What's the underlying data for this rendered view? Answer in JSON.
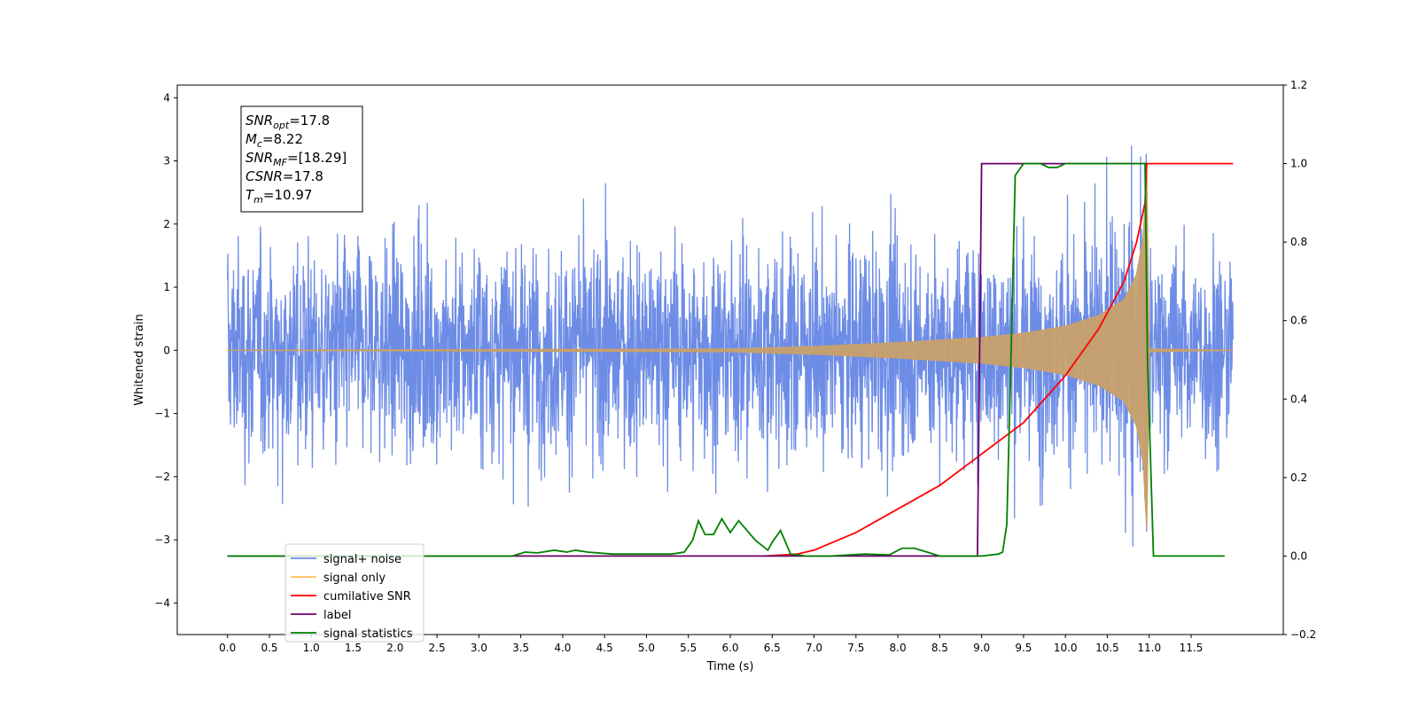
{
  "chart_data": {
    "type": "line",
    "xlabel": "Time (s)",
    "ylabel": "Whitened strain",
    "xlim": [
      -0.6,
      12.6
    ],
    "ylim": [
      -4.5,
      4.2
    ],
    "y2lim": [
      -0.2,
      1.2
    ],
    "xticks": [
      "0.0",
      "0.5",
      "1.0",
      "1.5",
      "2.0",
      "2.5",
      "3.0",
      "3.5",
      "4.0",
      "4.5",
      "5.0",
      "5.5",
      "6.0",
      "6.5",
      "7.0",
      "7.5",
      "8.0",
      "8.5",
      "9.0",
      "9.5",
      "10.0",
      "10.5",
      "11.0",
      "11.5"
    ],
    "yticks": [
      "−4",
      "−3",
      "−2",
      "−1",
      "0",
      "1",
      "2",
      "3",
      "4"
    ],
    "y2ticks": [
      "−0.2",
      "0.0",
      "0.2",
      "0.4",
      "0.6",
      "0.8",
      "1.0",
      "1.2"
    ],
    "annotation": [
      {
        "sym": "SNR",
        "sub": "opt",
        "val": "=17.8"
      },
      {
        "sym": "M",
        "sub": "c",
        "val": "=8.22"
      },
      {
        "sym": "SNR",
        "sub": "MF",
        "val": "=[18.29]"
      },
      {
        "sym": "CSNR",
        "sub": "",
        "val": "=17.8"
      },
      {
        "sym": "T",
        "sub": "m",
        "val": "=10.97"
      }
    ],
    "legend": {
      "placement": "lower-left",
      "entries": [
        {
          "label": "signal+ noise",
          "color": "#6d8ce6"
        },
        {
          "label": "signal only",
          "color": "#ffbf5a"
        },
        {
          "label": "cumilative SNR",
          "color": "#ff0000"
        },
        {
          "label": "label",
          "color": "#6b006b"
        },
        {
          "label": "signal statistics",
          "color": "#008000"
        }
      ]
    },
    "series": [
      {
        "name": "signal+ noise",
        "axis": "left",
        "color": "#6d8ce6",
        "description_range": [
          0.0,
          12.0
        ],
        "amplitude_envelope": {
          "x": [
            0,
            2,
            4,
            6,
            8,
            9,
            10,
            10.5,
            10.9,
            11.0,
            12.0
          ],
          "y": [
            2.8,
            2.9,
            3.0,
            3.2,
            3.0,
            3.1,
            3.2,
            3.2,
            3.3,
            3.0,
            2.9
          ]
        }
      },
      {
        "name": "signal only",
        "axis": "left",
        "color": "#c8a06b",
        "x": [
          0.0,
          6.0,
          7.0,
          8.0,
          9.0,
          9.5,
          10.0,
          10.4,
          10.7,
          10.85,
          10.93,
          10.97,
          11.0,
          12.0
        ],
        "y": [
          0.0,
          0.02,
          0.06,
          0.12,
          0.2,
          0.27,
          0.38,
          0.55,
          0.8,
          1.2,
          1.8,
          2.8,
          0.02,
          0.0
        ]
      },
      {
        "name": "cumilative SNR",
        "axis": "right",
        "color": "#ff0000",
        "x": [
          6.4,
          6.8,
          7.0,
          7.5,
          8.0,
          8.5,
          9.0,
          9.5,
          10.0,
          10.4,
          10.7,
          10.85,
          10.95,
          10.97,
          11.1,
          12.0
        ],
        "y": [
          0.0,
          0.005,
          0.015,
          0.06,
          0.12,
          0.18,
          0.26,
          0.34,
          0.46,
          0.58,
          0.7,
          0.8,
          0.9,
          1.0,
          1.0,
          1.0
        ]
      },
      {
        "name": "label",
        "axis": "right",
        "color": "#6b006b",
        "x": [
          0.0,
          8.95,
          9.0,
          10.97
        ],
        "y": [
          0.0,
          0.0,
          1.0,
          1.0
        ]
      },
      {
        "name": "signal statistics",
        "axis": "right",
        "color": "#008000",
        "x": [
          0.0,
          3.4,
          3.55,
          3.7,
          3.9,
          4.05,
          4.15,
          4.3,
          4.6,
          5.0,
          5.3,
          5.45,
          5.55,
          5.62,
          5.7,
          5.8,
          5.9,
          6.0,
          6.1,
          6.2,
          6.3,
          6.45,
          6.5,
          6.6,
          6.72,
          6.8,
          6.9,
          7.2,
          7.6,
          7.9,
          8.05,
          8.2,
          8.5,
          9.0,
          9.2,
          9.25,
          9.3,
          9.35,
          9.4,
          9.5,
          9.7,
          9.8,
          9.9,
          10.0,
          10.5,
          10.95,
          10.98,
          11.05,
          11.9
        ],
        "y": [
          0.0,
          0.0,
          0.01,
          0.008,
          0.015,
          0.01,
          0.015,
          0.01,
          0.005,
          0.005,
          0.005,
          0.01,
          0.04,
          0.09,
          0.055,
          0.055,
          0.095,
          0.06,
          0.09,
          0.065,
          0.04,
          0.015,
          0.035,
          0.065,
          0.005,
          0.003,
          0.0,
          0.0,
          0.005,
          0.003,
          0.02,
          0.02,
          0.0,
          0.0,
          0.005,
          0.01,
          0.08,
          0.5,
          0.97,
          1.0,
          1.0,
          0.99,
          0.99,
          1.0,
          1.0,
          1.0,
          0.5,
          0.0,
          0.0
        ]
      }
    ]
  }
}
